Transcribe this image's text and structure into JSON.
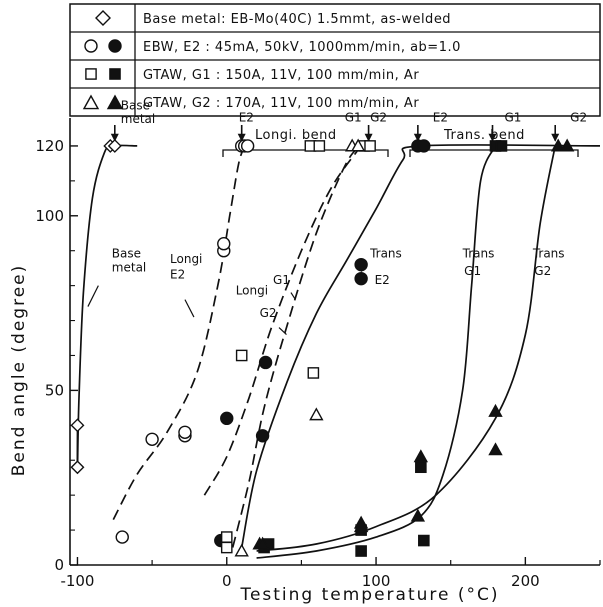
{
  "chart_data": {
    "type": "scatter",
    "xlabel": "Testing temperature (°C)",
    "ylabel": "Bend angle (degree)",
    "xlim": [
      -105,
      250
    ],
    "ylim": [
      0,
      128
    ],
    "x_ticks": [
      -100,
      0,
      100,
      200
    ],
    "y_ticks": [
      0,
      50,
      100,
      120
    ],
    "grid": false,
    "legend_position": "top",
    "legend": [
      {
        "symbols": "◇",
        "text": "Base metal: EB-Mo(40C) 1.5mmt, as-welded"
      },
      {
        "symbols": "○ ●",
        "text": "EBW, E2 : 45mA, 50kV, 1000mm/min, ab=1.0"
      },
      {
        "symbols": "□ ■",
        "text": "GTAW, G1 : 150A, 11V, 100 mm/min, Ar"
      },
      {
        "symbols": "△ ▲",
        "text": "GTAW, G2 : 170A, 11V, 100 mm/min, Ar"
      }
    ],
    "group_labels": {
      "longi": "Longi. bend",
      "trans": "Trans. bend"
    },
    "series": [
      {
        "name": "Base metal",
        "marker": "diamond-open",
        "points": [
          [
            -100,
            40
          ],
          [
            -100,
            28
          ],
          [
            -78,
            120
          ],
          [
            -75,
            120
          ]
        ]
      },
      {
        "name": "EBW E2 longi.",
        "marker": "circle-open",
        "points": [
          [
            -70,
            8
          ],
          [
            -50,
            36
          ],
          [
            -28,
            37
          ],
          [
            -28,
            38
          ],
          [
            -2,
            90
          ],
          [
            -2,
            92
          ],
          [
            10,
            120
          ],
          [
            12,
            120
          ],
          [
            14,
            120
          ]
        ]
      },
      {
        "name": "EBW E2 trans.",
        "marker": "circle-filled",
        "points": [
          [
            -4,
            7
          ],
          [
            0,
            42
          ],
          [
            24,
            37
          ],
          [
            26,
            58
          ],
          [
            90,
            82
          ],
          [
            90,
            86
          ],
          [
            128,
            120
          ],
          [
            132,
            120
          ]
        ]
      },
      {
        "name": "GTAW G1 longi.",
        "marker": "square-open",
        "points": [
          [
            0,
            5
          ],
          [
            0,
            8
          ],
          [
            10,
            60
          ],
          [
            58,
            55
          ],
          [
            56,
            120
          ],
          [
            62,
            120
          ],
          [
            92,
            120
          ],
          [
            96,
            120
          ]
        ]
      },
      {
        "name": "GTAW G1 trans.",
        "marker": "square-filled",
        "points": [
          [
            25,
            5
          ],
          [
            28,
            6
          ],
          [
            90,
            4
          ],
          [
            90,
            10
          ],
          [
            130,
            28
          ],
          [
            132,
            7
          ],
          [
            180,
            120
          ],
          [
            184,
            120
          ]
        ]
      },
      {
        "name": "GTAW G2 longi.",
        "marker": "triangle-open",
        "points": [
          [
            10,
            4
          ],
          [
            60,
            43
          ],
          [
            84,
            120
          ],
          [
            88,
            120
          ]
        ]
      },
      {
        "name": "GTAW G2 trans.",
        "marker": "triangle-filled",
        "points": [
          [
            22,
            6
          ],
          [
            24,
            6
          ],
          [
            90,
            12
          ],
          [
            90,
            11
          ],
          [
            128,
            14
          ],
          [
            130,
            31
          ],
          [
            180,
            44
          ],
          [
            180,
            33
          ],
          [
            222,
            120
          ],
          [
            228,
            120
          ]
        ]
      }
    ],
    "curves": [
      {
        "name": "Base metal",
        "style": "solid",
        "points": [
          [
            -100,
            40
          ],
          [
            -100,
            28
          ],
          [
            -99,
            48
          ],
          [
            -96,
            78
          ],
          [
            -90,
            105
          ],
          [
            -82,
            118
          ],
          [
            -76,
            120
          ],
          [
            -60,
            120
          ]
        ]
      },
      {
        "name": "Longi E2",
        "style": "dashed",
        "points": [
          [
            -76,
            13
          ],
          [
            -60,
            26
          ],
          [
            -40,
            38
          ],
          [
            -20,
            55
          ],
          [
            -6,
            80
          ],
          [
            2,
            100
          ],
          [
            8,
            115
          ],
          [
            12,
            120
          ]
        ]
      },
      {
        "name": "Longi G1",
        "style": "dashed",
        "points": [
          [
            -15,
            20
          ],
          [
            0,
            31
          ],
          [
            15,
            48
          ],
          [
            30,
            68
          ],
          [
            50,
            90
          ],
          [
            70,
            108
          ],
          [
            90,
            120
          ]
        ]
      },
      {
        "name": "Longi G2",
        "style": "dashed",
        "points": [
          [
            4,
            5
          ],
          [
            15,
            24
          ],
          [
            25,
            45
          ],
          [
            40,
            68
          ],
          [
            60,
            95
          ],
          [
            80,
            115
          ],
          [
            90,
            120
          ]
        ]
      },
      {
        "name": "Trans E2",
        "style": "solid",
        "points": [
          [
            10,
            5
          ],
          [
            20,
            27
          ],
          [
            40,
            52
          ],
          [
            60,
            72
          ],
          [
            80,
            87
          ],
          [
            100,
            102
          ],
          [
            118,
            116
          ],
          [
            130,
            120
          ],
          [
            250,
            120
          ]
        ]
      },
      {
        "name": "Trans G1",
        "style": "solid",
        "points": [
          [
            20,
            2
          ],
          [
            60,
            4
          ],
          [
            100,
            8
          ],
          [
            130,
            14
          ],
          [
            145,
            26
          ],
          [
            158,
            50
          ],
          [
            164,
            80
          ],
          [
            170,
            110
          ],
          [
            180,
            120
          ]
        ]
      },
      {
        "name": "Trans G2",
        "style": "solid",
        "points": [
          [
            20,
            4
          ],
          [
            60,
            6
          ],
          [
            100,
            11
          ],
          [
            140,
            20
          ],
          [
            180,
            42
          ],
          [
            200,
            66
          ],
          [
            210,
            98
          ],
          [
            220,
            120
          ]
        ]
      }
    ],
    "annotations": [
      {
        "text": "Base",
        "x": -71,
        "y": 130.5
      },
      {
        "text": "metal",
        "x": -71,
        "y": 126.5
      },
      {
        "text": "Base",
        "x": -77,
        "y": 88
      },
      {
        "text": "metal",
        "x": -77,
        "y": 84
      },
      {
        "text": "Longi",
        "x": -38,
        "y": 86.5
      },
      {
        "text": "E2",
        "x": -38,
        "y": 82
      },
      {
        "text": "E2",
        "x": 8,
        "y": 127
      },
      {
        "text": "G1",
        "x": 79,
        "y": 127
      },
      {
        "text": "G2",
        "x": 96,
        "y": 127
      },
      {
        "text": "E2",
        "x": 138,
        "y": 127
      },
      {
        "text": "G1",
        "x": 186,
        "y": 127
      },
      {
        "text": "G2",
        "x": 230,
        "y": 127
      },
      {
        "text": "G1",
        "x": 31,
        "y": 80.5
      },
      {
        "text": "Longi",
        "x": 6,
        "y": 77.5
      },
      {
        "text": "G2",
        "x": 22,
        "y": 71
      },
      {
        "text": "Trans",
        "x": 96,
        "y": 88
      },
      {
        "text": "E2",
        "x": 99,
        "y": 80.5
      },
      {
        "text": "Trans",
        "x": 158,
        "y": 88
      },
      {
        "text": "G1",
        "x": 159,
        "y": 83
      },
      {
        "text": "Trans",
        "x": 205,
        "y": 88
      },
      {
        "text": "G2",
        "x": 206,
        "y": 83
      }
    ],
    "arrows_at_x": [
      -75,
      10,
      95,
      128,
      178,
      220
    ]
  }
}
